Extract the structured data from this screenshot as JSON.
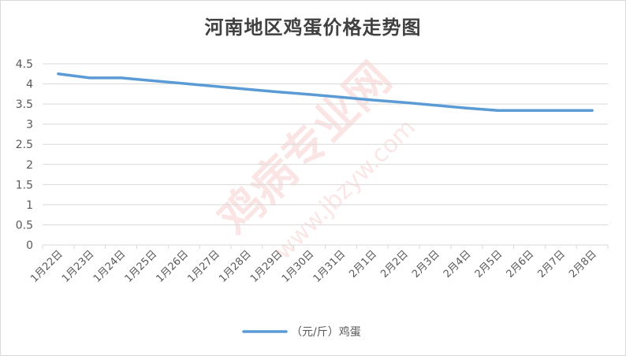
{
  "chart_data": {
    "type": "line",
    "title": "河南地区鸡蛋价格走势图",
    "categories": [
      "1月22日",
      "1月23日",
      "1月24日",
      "1月25日",
      "1月26日",
      "1月27日",
      "1月28日",
      "1月29日",
      "1月30日",
      "1月31日",
      "2月1日",
      "2月2日",
      "2月3日",
      "2月4日",
      "2月5日",
      "2月6日",
      "2月7日",
      "2月8日"
    ],
    "series": [
      {
        "name": "（元/斤）鸡蛋",
        "values": [
          4.25,
          4.15,
          4.15,
          4.08,
          4.01,
          3.94,
          3.87,
          3.8,
          3.74,
          3.67,
          3.6,
          3.54,
          3.47,
          3.4,
          3.34,
          3.34,
          3.34,
          3.34
        ],
        "color": "#5b9bd5"
      }
    ],
    "ylim": [
      0,
      4.5
    ],
    "yticks": [
      0,
      0.5,
      1,
      1.5,
      2,
      2.5,
      3,
      3.5,
      4,
      4.5
    ],
    "grid": true,
    "legend_position": "bottom"
  },
  "watermark": {
    "text": "鸡病专业网",
    "url": "www.jbzyw.com"
  }
}
